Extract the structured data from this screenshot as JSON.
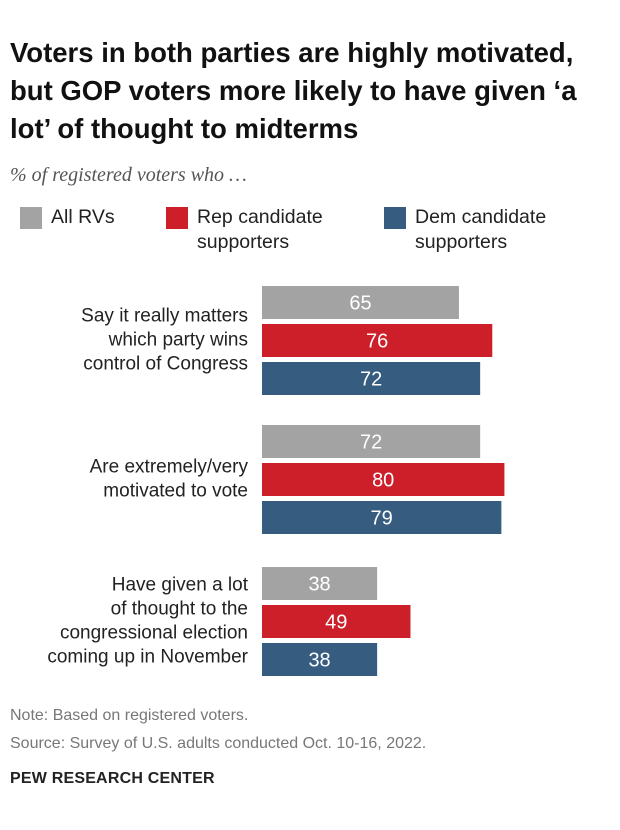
{
  "title": "Voters in both parties are highly motivated, but GOP voters more likely to have given ‘a lot’ of thought to midterms",
  "subtitle": "% of registered voters who …",
  "legend": [
    {
      "label": "All RVs",
      "color": "#a3a3a3"
    },
    {
      "label": "Rep candidate\nsupporters",
      "color": "#cc1f2a"
    },
    {
      "label": "Dem candidate\nsupporters",
      "color": "#365d80"
    }
  ],
  "chart_data": {
    "type": "bar",
    "orientation": "horizontal",
    "categories": [
      "Say it really matters which party wins control of Congress",
      "Are extremely/very motivated to vote",
      "Have given a lot of thought to the congressional election coming up in November"
    ],
    "category_lines": [
      [
        "Say it really matters",
        "which party wins",
        "control of Congress"
      ],
      [
        "Are extremely/very",
        "motivated to vote"
      ],
      [
        "Have given a lot",
        "of thought to the",
        "congressional election",
        "coming up in November"
      ]
    ],
    "series": [
      {
        "name": "All RVs",
        "color": "#a3a3a3",
        "values": [
          65,
          72,
          38
        ]
      },
      {
        "name": "Rep candidate supporters",
        "color": "#cc1f2a",
        "values": [
          76,
          80,
          49
        ]
      },
      {
        "name": "Dem candidate supporters",
        "color": "#365d80",
        "values": [
          72,
          79,
          38
        ]
      }
    ],
    "xlim": [
      0,
      100
    ],
    "title": "Voters in both parties are highly motivated, but GOP voters more likely to have given ‘a lot’ of thought to midterms",
    "xlabel": "",
    "ylabel": ""
  },
  "notes": {
    "note": "Note: Based on registered voters.",
    "source": "Source: Survey of U.S. adults conducted Oct. 10-16, 2022."
  },
  "brand": "PEW RESEARCH CENTER"
}
